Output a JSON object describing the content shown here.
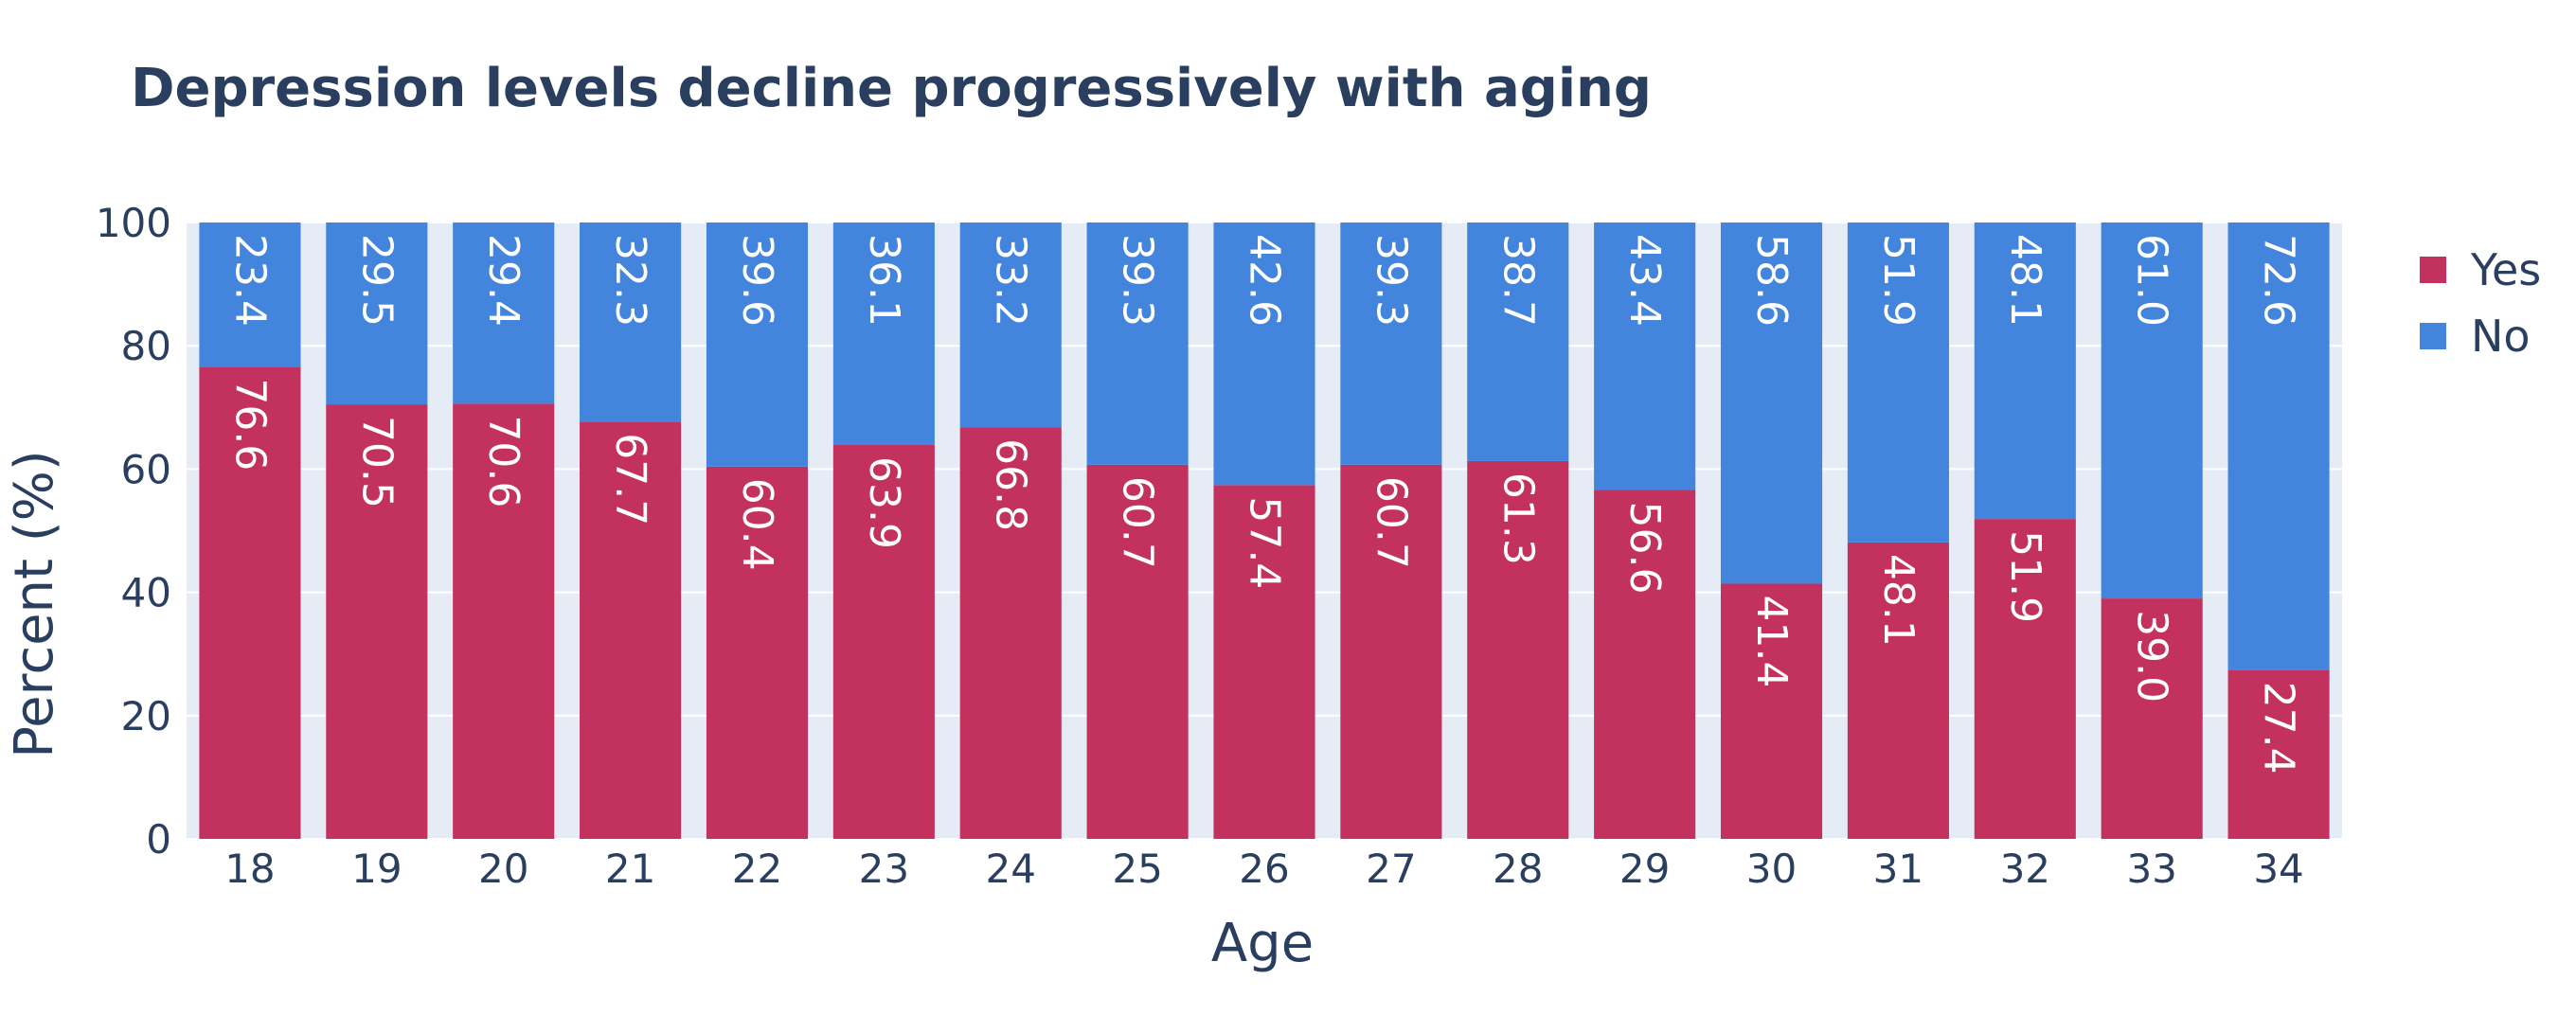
{
  "chart_data": {
    "type": "bar",
    "stacked": true,
    "title": "Depression levels decline progressively with aging",
    "xlabel": "Age",
    "ylabel": "Percent (%)",
    "ylim": [
      0,
      100
    ],
    "yticks": [
      "0",
      "20",
      "40",
      "60",
      "80",
      "100"
    ],
    "ytick_values": [
      0,
      20,
      40,
      60,
      80,
      100
    ],
    "categories": [
      "18",
      "19",
      "20",
      "21",
      "22",
      "23",
      "24",
      "25",
      "26",
      "27",
      "28",
      "29",
      "30",
      "31",
      "32",
      "33",
      "34"
    ],
    "series": [
      {
        "name": "Yes",
        "color": "#c3325e",
        "values": [
          76.6,
          70.5,
          70.6,
          67.7,
          60.4,
          63.9,
          66.8,
          60.7,
          57.4,
          60.7,
          61.3,
          56.6,
          41.4,
          48.1,
          51.9,
          39.0,
          27.4
        ],
        "labels": [
          "76.6",
          "70.5",
          "70.6",
          "67.7",
          "60.4",
          "63.9",
          "66.8",
          "60.7",
          "57.4",
          "60.7",
          "61.3",
          "56.6",
          "41.4",
          "48.1",
          "51.9",
          "39.0",
          "27.4"
        ]
      },
      {
        "name": "No",
        "color": "#4385dd",
        "values": [
          23.4,
          29.5,
          29.4,
          32.3,
          39.6,
          36.1,
          33.2,
          39.3,
          42.6,
          39.3,
          38.7,
          43.4,
          58.6,
          51.9,
          48.1,
          61.0,
          72.6
        ],
        "labels": [
          "23.4",
          "29.5",
          "29.4",
          "32.3",
          "39.6",
          "36.1",
          "33.2",
          "39.3",
          "42.6",
          "39.3",
          "38.7",
          "43.4",
          "58.6",
          "51.9",
          "48.1",
          "61.0",
          "72.6"
        ]
      }
    ],
    "grid": true,
    "plot_background": "#e5ecf6",
    "legend_position": "top-right"
  }
}
